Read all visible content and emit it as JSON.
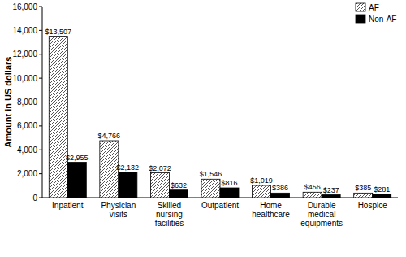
{
  "chart_data": {
    "type": "bar",
    "y_label": "Amount in US dollars",
    "categories": [
      "Inpatient",
      "Physician visits",
      "Skilled nursing facilities",
      "Outpatient",
      "Home healthcare",
      "Durable medical equipments",
      "Hospice"
    ],
    "series": [
      {
        "name": "AF",
        "color": "#ffffff",
        "values": [
          13507,
          4766,
          2072,
          1546,
          1019,
          456,
          385
        ],
        "value_labels": [
          "$13,507",
          "$4,766",
          "$2,072",
          "$1,546",
          "$1,019",
          "$456",
          "$385"
        ]
      },
      {
        "name": "Non-AF",
        "color": "#000000",
        "values": [
          2955,
          2132,
          632,
          816,
          386,
          237,
          281
        ],
        "value_labels": [
          "$2,955",
          "$2,132",
          "$632",
          "$816",
          "$386",
          "$237",
          "$281"
        ]
      }
    ],
    "ylim": [
      0,
      16000
    ],
    "yticks": [
      0,
      {
        "value": 2000,
        "label": "2,000"
      },
      {
        "value": 4000,
        "label": "4,000"
      },
      {
        "value": 6000,
        "label": "6,000"
      },
      {
        "value": 8000,
        "label": "8,000"
      },
      {
        "value": 10000,
        "label": "10,000"
      },
      {
        "value": 12000,
        "label": "12,000"
      },
      {
        "value": 14000,
        "label": "14,000"
      },
      {
        "value": 16000,
        "label": "16,000"
      }
    ],
    "grid": false,
    "legend": "upper right",
    "data_labels": true
  }
}
